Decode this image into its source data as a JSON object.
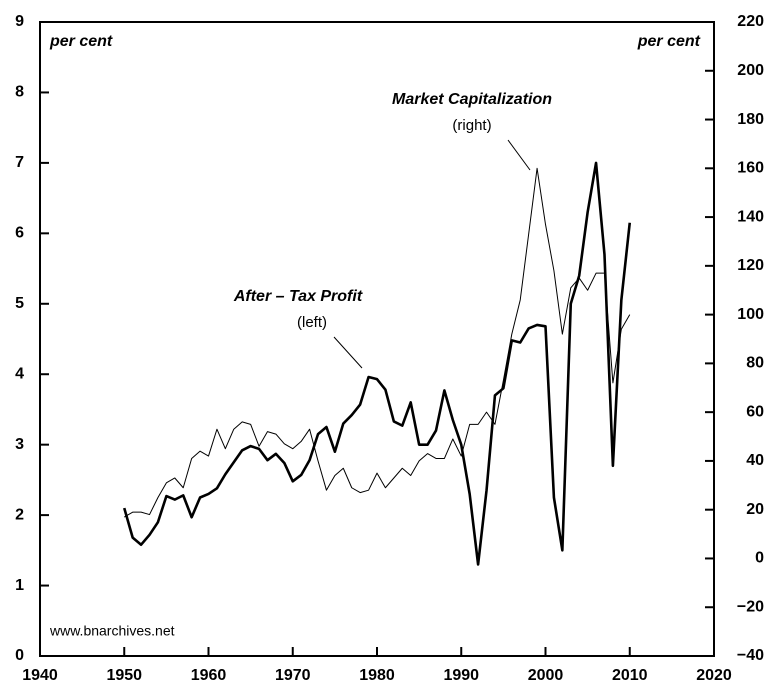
{
  "chart_data": {
    "type": "line",
    "annotations": [
      "per cent",
      "per cent",
      "Market Capitalization",
      "(right)",
      "After – Tax Profit",
      "(left)",
      "www.bnarchives.net"
    ],
    "x": [
      1950,
      1951,
      1952,
      1953,
      1954,
      1955,
      1956,
      1957,
      1958,
      1959,
      1960,
      1961,
      1962,
      1963,
      1964,
      1965,
      1966,
      1967,
      1968,
      1969,
      1970,
      1971,
      1972,
      1973,
      1974,
      1975,
      1976,
      1977,
      1978,
      1979,
      1980,
      1981,
      1982,
      1983,
      1984,
      1985,
      1986,
      1987,
      1988,
      1989,
      1990,
      1991,
      1992,
      1993,
      1994,
      1995,
      1996,
      1997,
      1998,
      1999,
      2000,
      2001,
      2002,
      2003,
      2004,
      2005,
      2006,
      2007,
      2008,
      2009,
      2010
    ],
    "series": [
      {
        "name": "After – Tax Profit",
        "color": "#000000",
        "width": 2.6,
        "axis": "y",
        "values": [
          2.1,
          1.68,
          1.58,
          1.72,
          1.9,
          2.27,
          2.22,
          2.28,
          1.97,
          2.25,
          2.3,
          2.38,
          2.58,
          2.75,
          2.92,
          2.98,
          2.94,
          2.78,
          2.87,
          2.74,
          2.48,
          2.57,
          2.78,
          3.15,
          3.25,
          2.9,
          3.3,
          3.42,
          3.57,
          3.96,
          3.93,
          3.78,
          3.33,
          3.27,
          3.6,
          3.0,
          3.0,
          3.2,
          3.77,
          3.35,
          3.0,
          2.3,
          1.3,
          2.35,
          3.7,
          3.8,
          4.48,
          4.45,
          4.65,
          4.7,
          4.68,
          2.25,
          1.5,
          5.0,
          5.4,
          6.3,
          7.0,
          5.7,
          2.7,
          5.05,
          6.15
        ]
      },
      {
        "name": "Market Capitalization",
        "color": "#000000",
        "width": 1,
        "axis": "y2",
        "values": [
          17,
          19,
          19,
          18,
          25,
          31,
          33,
          29,
          41,
          44,
          42,
          53,
          45,
          53,
          56,
          55,
          46,
          52,
          51,
          47,
          45,
          48,
          53,
          40,
          28,
          34,
          37,
          29,
          27,
          28,
          35,
          29,
          33,
          37,
          34,
          40,
          43,
          41,
          41,
          49,
          42,
          55,
          55,
          60,
          55,
          73,
          92,
          106,
          133,
          160,
          137,
          118,
          92,
          111,
          115,
          110,
          117,
          117,
          72,
          94,
          100
        ]
      }
    ],
    "xlim": [
      1940,
      2020
    ],
    "xticks": [
      1940,
      1950,
      1960,
      1970,
      1980,
      1990,
      2000,
      2010,
      2020
    ],
    "ylim": [
      0,
      9
    ],
    "yticks": [
      0,
      1,
      2,
      3,
      4,
      5,
      6,
      7,
      8,
      9
    ],
    "y2lim": [
      -40,
      220
    ],
    "y2ticks": [
      {
        "value": -40,
        "label": "−40"
      },
      {
        "value": -20,
        "label": "−20"
      },
      0,
      20,
      40,
      60,
      80,
      100,
      120,
      140,
      160,
      180,
      200,
      220
    ]
  }
}
